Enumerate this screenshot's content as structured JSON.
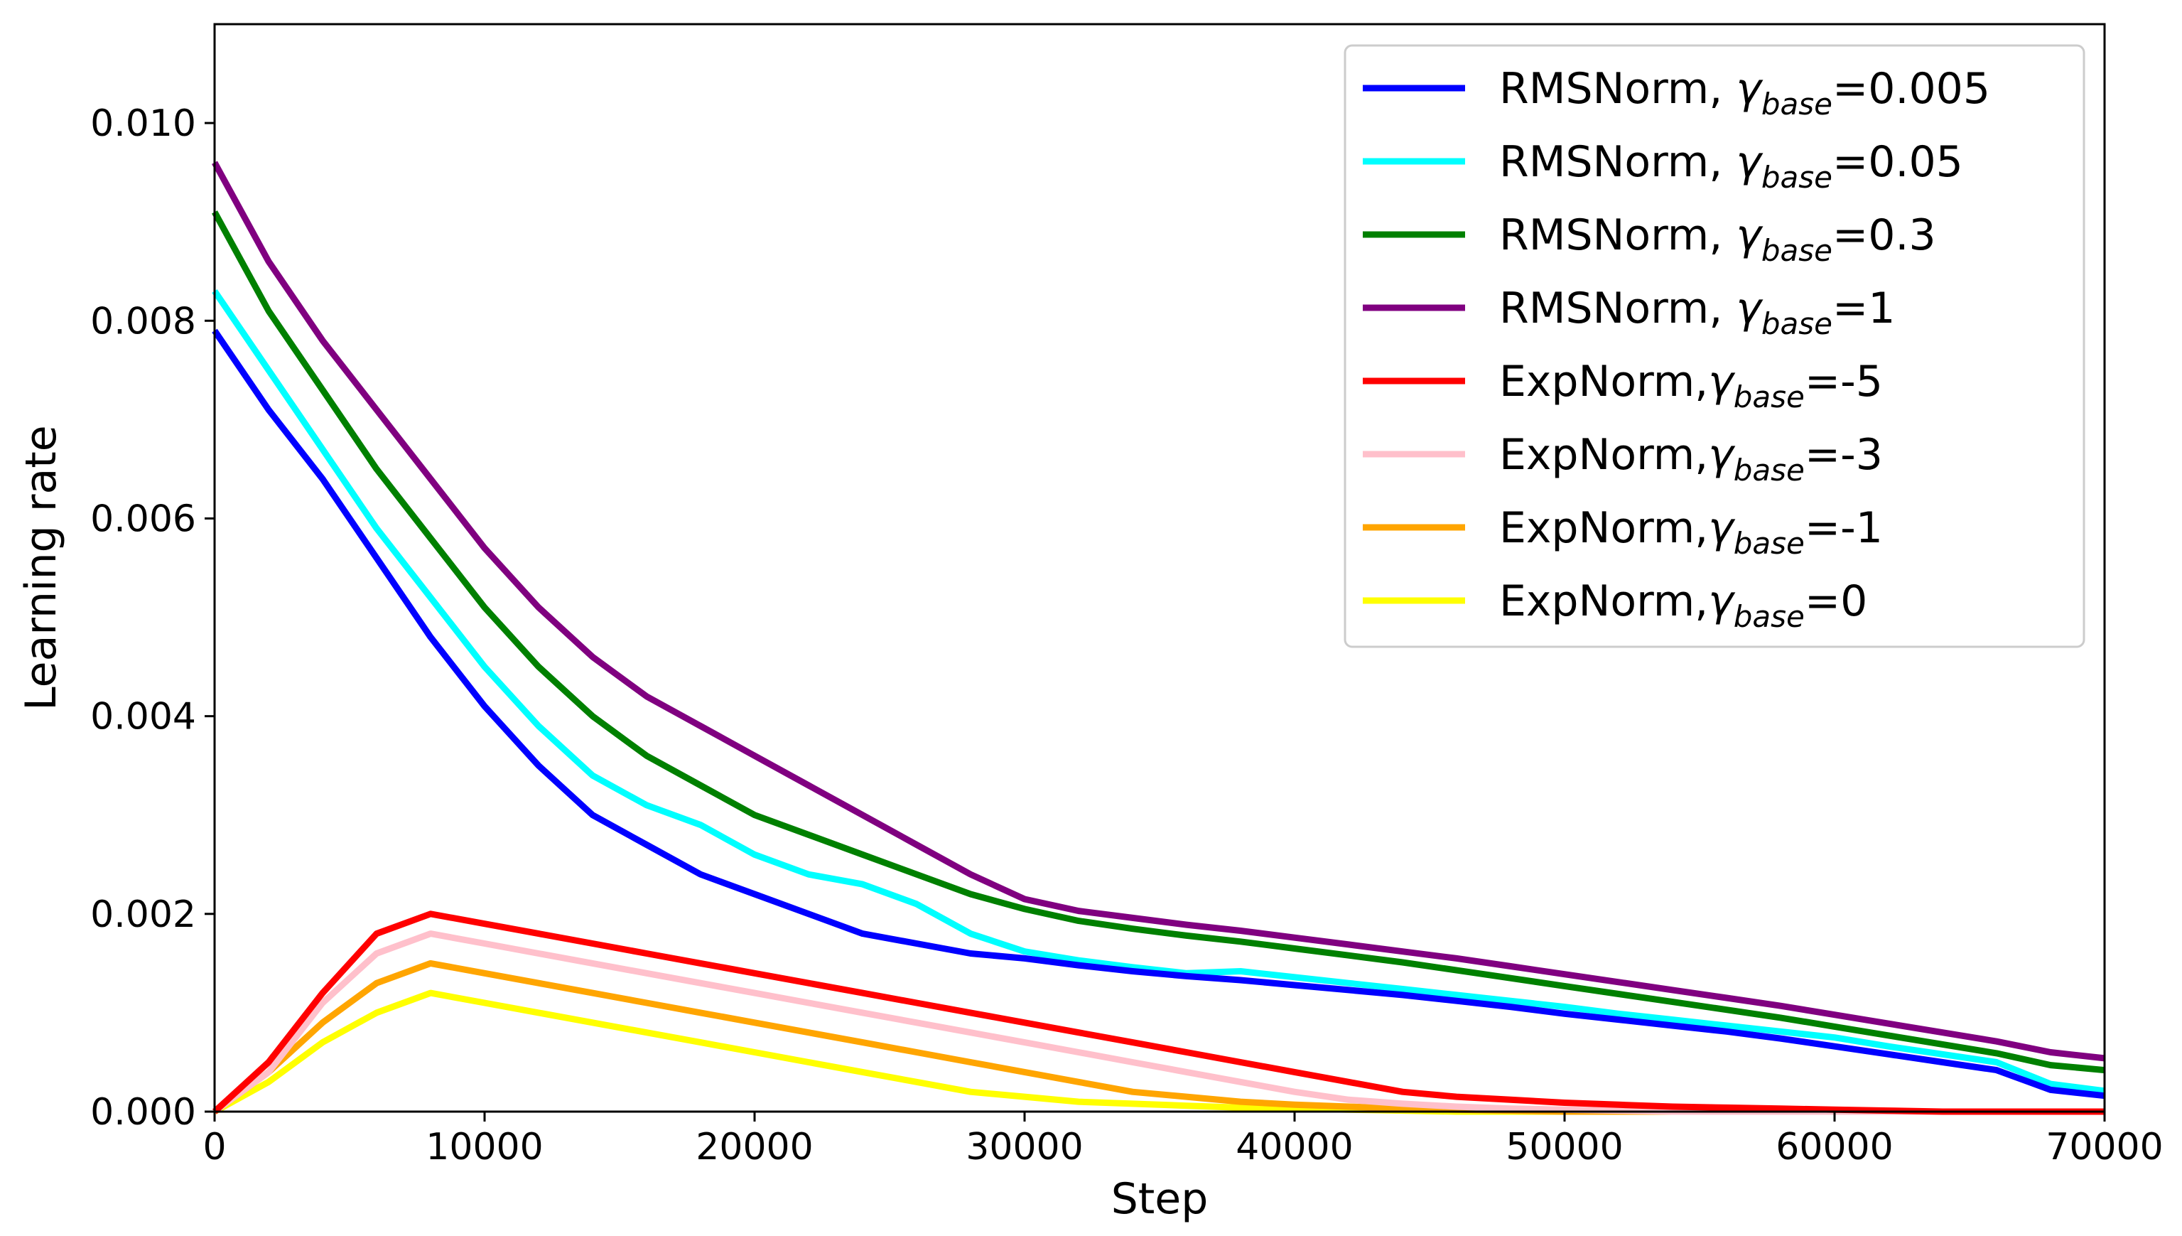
{
  "chart_data": {
    "type": "line",
    "xlabel": "Step",
    "ylabel": "Learning rate",
    "xlim": [
      0,
      70000
    ],
    "ylim": [
      0,
      0.011
    ],
    "xticks": [
      0,
      10000,
      20000,
      30000,
      40000,
      50000,
      60000,
      70000
    ],
    "xtick_labels": [
      "0",
      "10000",
      "20000",
      "30000",
      "40000",
      "50000",
      "60000",
      "70000"
    ],
    "yticks": [
      0,
      0.002,
      0.004,
      0.006,
      0.008,
      0.01
    ],
    "ytick_labels": [
      "0.000",
      "0.002",
      "0.004",
      "0.006",
      "0.008",
      "0.010"
    ],
    "grid": false,
    "legend_position": "top-right",
    "series": [
      {
        "name": "RMSNorm, γbase=0.005",
        "legend": {
          "prefix": "RMSNorm, ",
          "symbol": "γ",
          "sub": "base",
          "suffix": "=0.005"
        },
        "color": "#0000ff",
        "x": [
          0,
          2000,
          4000,
          6000,
          8000,
          10000,
          12000,
          14000,
          16000,
          18000,
          20000,
          22000,
          24000,
          26000,
          28000,
          30000,
          32000,
          34000,
          36000,
          38000,
          40000,
          42000,
          44000,
          46000,
          48000,
          50000,
          52000,
          54000,
          56000,
          58000,
          60000,
          62000,
          64000,
          66000,
          68000,
          70000
        ],
        "y": [
          0.0079,
          0.0071,
          0.0064,
          0.0056,
          0.0048,
          0.0041,
          0.0035,
          0.003,
          0.0027,
          0.0024,
          0.0022,
          0.002,
          0.0018,
          0.0017,
          0.0016,
          0.00155,
          0.00148,
          0.00142,
          0.00137,
          0.00133,
          0.00128,
          0.00123,
          0.00118,
          0.00112,
          0.00106,
          0.00099,
          0.00093,
          0.00087,
          0.00081,
          0.00074,
          0.00066,
          0.00058,
          0.0005,
          0.00042,
          0.00022,
          0.00016
        ]
      },
      {
        "name": "RMSNorm, γbase=0.05",
        "legend": {
          "prefix": "RMSNorm, ",
          "symbol": "γ",
          "sub": "base",
          "suffix": "=0.05"
        },
        "color": "#00ffff",
        "x": [
          0,
          2000,
          4000,
          6000,
          8000,
          10000,
          12000,
          14000,
          16000,
          18000,
          20000,
          22000,
          24000,
          26000,
          28000,
          30000,
          32000,
          34000,
          36000,
          38000,
          40000,
          42000,
          44000,
          46000,
          48000,
          50000,
          52000,
          54000,
          56000,
          58000,
          60000,
          62000,
          64000,
          66000,
          68000,
          70000
        ],
        "y": [
          0.0083,
          0.0075,
          0.0067,
          0.0059,
          0.0052,
          0.0045,
          0.0039,
          0.0034,
          0.0031,
          0.0029,
          0.0026,
          0.0024,
          0.0023,
          0.0021,
          0.0018,
          0.00162,
          0.00153,
          0.00146,
          0.0014,
          0.00142,
          0.00136,
          0.0013,
          0.00124,
          0.00118,
          0.00112,
          0.00106,
          0.00099,
          0.00093,
          0.00087,
          0.00081,
          0.00075,
          0.00066,
          0.00058,
          0.0005,
          0.00028,
          0.00021
        ]
      },
      {
        "name": "RMSNorm, γbase=0.3",
        "legend": {
          "prefix": "RMSNorm, ",
          "symbol": "γ",
          "sub": "base",
          "suffix": "=0.3"
        },
        "color": "#008000",
        "x": [
          0,
          2000,
          4000,
          6000,
          8000,
          10000,
          12000,
          14000,
          16000,
          18000,
          20000,
          22000,
          24000,
          26000,
          28000,
          30000,
          32000,
          34000,
          36000,
          38000,
          40000,
          42000,
          44000,
          46000,
          48000,
          50000,
          52000,
          54000,
          56000,
          58000,
          60000,
          62000,
          64000,
          66000,
          68000,
          70000
        ],
        "y": [
          0.0091,
          0.0081,
          0.0073,
          0.0065,
          0.0058,
          0.0051,
          0.0045,
          0.004,
          0.0036,
          0.0033,
          0.003,
          0.0028,
          0.0026,
          0.0024,
          0.0022,
          0.00205,
          0.00193,
          0.00185,
          0.00178,
          0.00172,
          0.00165,
          0.00158,
          0.00151,
          0.00143,
          0.00135,
          0.00127,
          0.00119,
          0.00111,
          0.00103,
          0.00095,
          0.00086,
          0.00077,
          0.00068,
          0.00059,
          0.00047,
          0.00042
        ]
      },
      {
        "name": "RMSNorm, γbase=1",
        "legend": {
          "prefix": "RMSNorm, ",
          "symbol": "γ",
          "sub": "base",
          "suffix": "=1"
        },
        "color": "#800080",
        "x": [
          0,
          2000,
          4000,
          6000,
          8000,
          10000,
          12000,
          14000,
          16000,
          18000,
          20000,
          22000,
          24000,
          26000,
          28000,
          30000,
          32000,
          34000,
          36000,
          38000,
          40000,
          42000,
          44000,
          46000,
          48000,
          50000,
          52000,
          54000,
          56000,
          58000,
          60000,
          62000,
          64000,
          66000,
          68000,
          70000
        ],
        "y": [
          0.0096,
          0.0086,
          0.0078,
          0.0071,
          0.0064,
          0.0057,
          0.0051,
          0.0046,
          0.0042,
          0.0039,
          0.0036,
          0.0033,
          0.003,
          0.0027,
          0.0024,
          0.00215,
          0.00203,
          0.00196,
          0.00189,
          0.00183,
          0.00176,
          0.00169,
          0.00162,
          0.00155,
          0.00147,
          0.00139,
          0.00131,
          0.00123,
          0.00115,
          0.00107,
          0.00098,
          0.00089,
          0.0008,
          0.00071,
          0.0006,
          0.00054
        ]
      },
      {
        "name": "ExpNorm,γbase=-5",
        "legend": {
          "prefix": "ExpNorm,",
          "symbol": "γ",
          "sub": "base",
          "suffix": "=-5"
        },
        "color": "#ff0000",
        "x": [
          0,
          2000,
          4000,
          6000,
          8000,
          10000,
          12000,
          14000,
          16000,
          18000,
          20000,
          22000,
          24000,
          26000,
          28000,
          30000,
          32000,
          34000,
          36000,
          38000,
          40000,
          42000,
          44000,
          46000,
          48000,
          50000,
          52000,
          54000,
          56000,
          58000,
          60000,
          62000,
          64000,
          66000,
          68000,
          70000
        ],
        "y": [
          0.0,
          0.0005,
          0.0012,
          0.0018,
          0.002,
          0.0019,
          0.0018,
          0.0017,
          0.0016,
          0.0015,
          0.0014,
          0.0013,
          0.0012,
          0.0011,
          0.001,
          0.0009,
          0.0008,
          0.0007,
          0.0006,
          0.0005,
          0.0004,
          0.0003,
          0.0002,
          0.00015,
          0.00012,
          9e-05,
          7e-05,
          5e-05,
          4e-05,
          3e-05,
          2e-05,
          1e-05,
          0.0,
          0.0,
          0.0,
          0.0
        ]
      },
      {
        "name": "ExpNorm,γbase=-3",
        "legend": {
          "prefix": "ExpNorm,",
          "symbol": "γ",
          "sub": "base",
          "suffix": "=-3"
        },
        "color": "#ffc0cb",
        "x": [
          0,
          2000,
          4000,
          6000,
          8000,
          10000,
          12000,
          14000,
          16000,
          18000,
          20000,
          22000,
          24000,
          26000,
          28000,
          30000,
          32000,
          34000,
          36000,
          38000,
          40000,
          42000,
          44000,
          46000,
          48000,
          50000,
          52000,
          54000,
          56000,
          58000,
          60000,
          62000,
          64000,
          66000,
          68000,
          70000
        ],
        "y": [
          0.0,
          0.0004,
          0.0011,
          0.0016,
          0.0018,
          0.0017,
          0.0016,
          0.0015,
          0.0014,
          0.0013,
          0.0012,
          0.0011,
          0.001,
          0.0009,
          0.0008,
          0.0007,
          0.0006,
          0.0005,
          0.0004,
          0.0003,
          0.0002,
          0.00012,
          8e-05,
          5e-05,
          3e-05,
          2e-05,
          1e-05,
          0.0,
          0.0,
          0.0,
          0.0,
          0.0,
          0.0,
          0.0,
          0.0,
          0.0
        ]
      },
      {
        "name": "ExpNorm,γbase=-1",
        "legend": {
          "prefix": "ExpNorm,",
          "symbol": "γ",
          "sub": "base",
          "suffix": "=-1"
        },
        "color": "#ffa500",
        "x": [
          0,
          2000,
          4000,
          6000,
          8000,
          10000,
          12000,
          14000,
          16000,
          18000,
          20000,
          22000,
          24000,
          26000,
          28000,
          30000,
          32000,
          34000,
          36000,
          38000,
          40000,
          42000,
          44000,
          46000,
          48000,
          50000,
          52000,
          54000,
          56000,
          58000,
          60000,
          62000,
          64000,
          66000,
          68000,
          70000
        ],
        "y": [
          0.0,
          0.0004,
          0.0009,
          0.0013,
          0.0015,
          0.0014,
          0.0013,
          0.0012,
          0.0011,
          0.001,
          0.0009,
          0.0008,
          0.0007,
          0.0006,
          0.0005,
          0.0004,
          0.0003,
          0.0002,
          0.00015,
          0.0001,
          7e-05,
          5e-05,
          3e-05,
          2e-05,
          1e-05,
          0.0,
          0.0,
          0.0,
          0.0,
          0.0,
          0.0,
          0.0,
          0.0,
          0.0,
          0.0,
          0.0
        ]
      },
      {
        "name": "ExpNorm,γbase=0",
        "legend": {
          "prefix": "ExpNorm,",
          "symbol": "γ",
          "sub": "base",
          "suffix": "=0"
        },
        "color": "#ffff00",
        "x": [
          0,
          2000,
          4000,
          6000,
          8000,
          10000,
          12000,
          14000,
          16000,
          18000,
          20000,
          22000,
          24000,
          26000,
          28000,
          30000,
          32000,
          34000,
          36000,
          38000,
          40000,
          42000,
          44000,
          46000,
          48000,
          50000,
          52000,
          54000,
          56000,
          58000,
          60000,
          62000,
          64000,
          66000,
          68000,
          70000
        ],
        "y": [
          0.0,
          0.0003,
          0.0007,
          0.001,
          0.0012,
          0.0011,
          0.001,
          0.0009,
          0.0008,
          0.0007,
          0.0006,
          0.0005,
          0.0004,
          0.0003,
          0.0002,
          0.00015,
          0.0001,
          8e-05,
          6e-05,
          4e-05,
          3e-05,
          2e-05,
          1e-05,
          0.0,
          0.0,
          0.0,
          0.0,
          0.0,
          0.0,
          0.0,
          0.0,
          0.0,
          0.0,
          0.0,
          0.0,
          0.0
        ]
      }
    ]
  }
}
